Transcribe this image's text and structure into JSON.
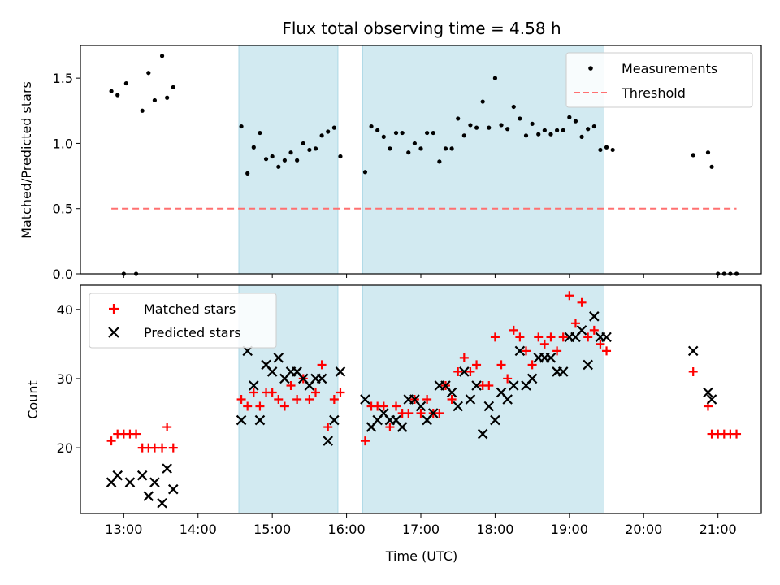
{
  "chart_data": [
    {
      "type": "scatter",
      "title": "Flux total observing time = 4.58 h",
      "xlabel": "",
      "ylabel": "Matched/Predicted stars",
      "ylim": [
        0,
        1.75
      ],
      "y_ticks": [
        "0.0",
        "0.5",
        "1.0",
        "1.5"
      ],
      "y_tick_values": [
        0,
        0.5,
        1.0,
        1.5
      ],
      "legend": {
        "position": "top-right",
        "entries": [
          "Measurements",
          "Threshold"
        ]
      },
      "shaded_intervals": [
        [
          "14:33",
          "15:53"
        ],
        [
          "16:13",
          "19:28"
        ]
      ],
      "colors": {
        "measurements": "#000000",
        "threshold": "#ff7070",
        "shade": "#add8e6"
      },
      "series": [
        {
          "name": "Measurements",
          "points": [
            [
              "12:50",
              1.4
            ],
            [
              "12:55",
              1.37
            ],
            [
              "13:00",
              0.0
            ],
            [
              "13:02",
              1.46
            ],
            [
              "13:10",
              0.0
            ],
            [
              "13:15",
              1.25
            ],
            [
              "13:20",
              1.54
            ],
            [
              "13:25",
              1.33
            ],
            [
              "13:31",
              1.67
            ],
            [
              "13:35",
              1.35
            ],
            [
              "13:40",
              1.43
            ],
            [
              "14:35",
              1.13
            ],
            [
              "14:40",
              0.77
            ],
            [
              "14:45",
              0.97
            ],
            [
              "14:50",
              1.08
            ],
            [
              "14:55",
              0.88
            ],
            [
              "15:00",
              0.9
            ],
            [
              "15:05",
              0.82
            ],
            [
              "15:10",
              0.87
            ],
            [
              "15:15",
              0.93
            ],
            [
              "15:20",
              0.87
            ],
            [
              "15:25",
              1.0
            ],
            [
              "15:30",
              0.95
            ],
            [
              "15:35",
              0.96
            ],
            [
              "15:40",
              1.06
            ],
            [
              "15:45",
              1.09
            ],
            [
              "15:50",
              1.12
            ],
            [
              "15:55",
              0.9
            ],
            [
              "16:15",
              0.78
            ],
            [
              "16:20",
              1.13
            ],
            [
              "16:25",
              1.1
            ],
            [
              "16:30",
              1.05
            ],
            [
              "16:35",
              0.96
            ],
            [
              "16:40",
              1.08
            ],
            [
              "16:45",
              1.08
            ],
            [
              "16:50",
              0.93
            ],
            [
              "16:55",
              1.0
            ],
            [
              "17:00",
              0.96
            ],
            [
              "17:05",
              1.08
            ],
            [
              "17:10",
              1.08
            ],
            [
              "17:15",
              0.86
            ],
            [
              "17:20",
              0.96
            ],
            [
              "17:25",
              0.96
            ],
            [
              "17:30",
              1.19
            ],
            [
              "17:35",
              1.06
            ],
            [
              "17:40",
              1.14
            ],
            [
              "17:45",
              1.12
            ],
            [
              "17:50",
              1.32
            ],
            [
              "17:55",
              1.12
            ],
            [
              "18:00",
              1.5
            ],
            [
              "18:05",
              1.14
            ],
            [
              "18:10",
              1.11
            ],
            [
              "18:15",
              1.28
            ],
            [
              "18:20",
              1.19
            ],
            [
              "18:25",
              1.06
            ],
            [
              "18:30",
              1.15
            ],
            [
              "18:35",
              1.07
            ],
            [
              "18:40",
              1.1
            ],
            [
              "18:45",
              1.07
            ],
            [
              "18:50",
              1.1
            ],
            [
              "18:55",
              1.1
            ],
            [
              "19:00",
              1.2
            ],
            [
              "19:05",
              1.17
            ],
            [
              "19:10",
              1.05
            ],
            [
              "19:15",
              1.11
            ],
            [
              "19:20",
              1.13
            ],
            [
              "19:25",
              0.95
            ],
            [
              "19:30",
              0.97
            ],
            [
              "19:35",
              0.95
            ],
            [
              "20:40",
              0.91
            ],
            [
              "20:52",
              0.93
            ],
            [
              "20:55",
              0.82
            ],
            [
              "21:00",
              0.0
            ],
            [
              "21:05",
              0.0
            ],
            [
              "21:10",
              0.0
            ],
            [
              "21:15",
              0.0
            ]
          ]
        },
        {
          "name": "Threshold",
          "x": [
            "12:50",
            "21:15"
          ],
          "y": [
            0.5,
            0.5
          ]
        }
      ]
    },
    {
      "type": "scatter",
      "title": "",
      "xlabel": "Time (UTC)",
      "ylabel": "Count",
      "ylim": [
        10.5,
        43.5
      ],
      "y_ticks": [
        "20",
        "30",
        "40"
      ],
      "y_tick_values": [
        20,
        30,
        40
      ],
      "x_ticks": [
        "13:00",
        "14:00",
        "15:00",
        "16:00",
        "17:00",
        "18:00",
        "19:00",
        "20:00",
        "21:00"
      ],
      "xlim": [
        "12:25",
        "21:35"
      ],
      "legend": {
        "position": "top-left",
        "entries": [
          "Matched stars",
          "Predicted stars"
        ]
      },
      "shaded_intervals": [
        [
          "14:33",
          "15:53"
        ],
        [
          "16:13",
          "19:28"
        ]
      ],
      "colors": {
        "matched": "#ff0000",
        "predicted": "#000000",
        "shade": "#add8e6"
      },
      "series": [
        {
          "name": "Matched stars",
          "points": [
            [
              "12:50",
              21
            ],
            [
              "12:55",
              22
            ],
            [
              "13:00",
              22
            ],
            [
              "13:05",
              22
            ],
            [
              "13:10",
              22
            ],
            [
              "13:15",
              20
            ],
            [
              "13:20",
              20
            ],
            [
              "13:25",
              20
            ],
            [
              "13:31",
              20
            ],
            [
              "13:35",
              23
            ],
            [
              "13:40",
              20
            ],
            [
              "14:35",
              27
            ],
            [
              "14:40",
              26
            ],
            [
              "14:45",
              28
            ],
            [
              "14:50",
              26
            ],
            [
              "14:55",
              28
            ],
            [
              "15:00",
              28
            ],
            [
              "15:05",
              27
            ],
            [
              "15:10",
              26
            ],
            [
              "15:15",
              29
            ],
            [
              "15:20",
              27
            ],
            [
              "15:25",
              30
            ],
            [
              "15:30",
              27
            ],
            [
              "15:35",
              28
            ],
            [
              "15:40",
              32
            ],
            [
              "15:45",
              23
            ],
            [
              "15:50",
              27
            ],
            [
              "15:55",
              28
            ],
            [
              "16:15",
              21
            ],
            [
              "16:20",
              26
            ],
            [
              "16:25",
              26
            ],
            [
              "16:30",
              26
            ],
            [
              "16:35",
              23
            ],
            [
              "16:40",
              26
            ],
            [
              "16:45",
              25
            ],
            [
              "16:50",
              25
            ],
            [
              "16:55",
              27
            ],
            [
              "17:00",
              25
            ],
            [
              "17:05",
              27
            ],
            [
              "17:10",
              25
            ],
            [
              "17:15",
              25
            ],
            [
              "17:20",
              29
            ],
            [
              "17:25",
              27
            ],
            [
              "17:30",
              31
            ],
            [
              "17:35",
              33
            ],
            [
              "17:40",
              31
            ],
            [
              "17:45",
              32
            ],
            [
              "17:50",
              29
            ],
            [
              "17:55",
              29
            ],
            [
              "18:00",
              36
            ],
            [
              "18:05",
              32
            ],
            [
              "18:10",
              30
            ],
            [
              "18:15",
              37
            ],
            [
              "18:20",
              36
            ],
            [
              "18:25",
              34
            ],
            [
              "18:30",
              32
            ],
            [
              "18:35",
              36
            ],
            [
              "18:40",
              35
            ],
            [
              "18:45",
              36
            ],
            [
              "18:50",
              34
            ],
            [
              "18:55",
              36
            ],
            [
              "19:00",
              42
            ],
            [
              "19:05",
              38
            ],
            [
              "19:10",
              41
            ],
            [
              "19:15",
              36
            ],
            [
              "19:20",
              37
            ],
            [
              "19:25",
              35
            ],
            [
              "19:30",
              34
            ],
            [
              "20:40",
              31
            ],
            [
              "20:52",
              26
            ],
            [
              "20:55",
              22
            ],
            [
              "21:00",
              22
            ],
            [
              "21:05",
              22
            ],
            [
              "21:10",
              22
            ],
            [
              "21:15",
              22
            ]
          ]
        },
        {
          "name": "Predicted stars",
          "points": [
            [
              "12:50",
              15
            ],
            [
              "12:55",
              16
            ],
            [
              "13:05",
              15
            ],
            [
              "13:15",
              16
            ],
            [
              "13:20",
              13
            ],
            [
              "13:25",
              15
            ],
            [
              "13:31",
              12
            ],
            [
              "13:35",
              17
            ],
            [
              "13:40",
              14
            ],
            [
              "14:35",
              24
            ],
            [
              "14:40",
              34
            ],
            [
              "14:45",
              29
            ],
            [
              "14:50",
              24
            ],
            [
              "14:55",
              32
            ],
            [
              "15:00",
              31
            ],
            [
              "15:05",
              33
            ],
            [
              "15:10",
              30
            ],
            [
              "15:15",
              31
            ],
            [
              "15:20",
              31
            ],
            [
              "15:25",
              30
            ],
            [
              "15:30",
              29
            ],
            [
              "15:35",
              30
            ],
            [
              "15:40",
              30
            ],
            [
              "15:45",
              21
            ],
            [
              "15:50",
              24
            ],
            [
              "15:55",
              31
            ],
            [
              "16:15",
              27
            ],
            [
              "16:20",
              23
            ],
            [
              "16:25",
              24
            ],
            [
              "16:30",
              25
            ],
            [
              "16:35",
              24
            ],
            [
              "16:40",
              24
            ],
            [
              "16:45",
              23
            ],
            [
              "16:50",
              27
            ],
            [
              "16:55",
              27
            ],
            [
              "17:00",
              26
            ],
            [
              "17:05",
              24
            ],
            [
              "17:10",
              25
            ],
            [
              "17:15",
              29
            ],
            [
              "17:20",
              29
            ],
            [
              "17:25",
              28
            ],
            [
              "17:30",
              26
            ],
            [
              "17:35",
              31
            ],
            [
              "17:40",
              27
            ],
            [
              "17:45",
              29
            ],
            [
              "17:50",
              22
            ],
            [
              "17:55",
              26
            ],
            [
              "18:00",
              24
            ],
            [
              "18:05",
              28
            ],
            [
              "18:10",
              27
            ],
            [
              "18:15",
              29
            ],
            [
              "18:20",
              34
            ],
            [
              "18:25",
              29
            ],
            [
              "18:30",
              30
            ],
            [
              "18:35",
              33
            ],
            [
              "18:40",
              33
            ],
            [
              "18:45",
              33
            ],
            [
              "18:50",
              31
            ],
            [
              "18:55",
              31
            ],
            [
              "19:00",
              36
            ],
            [
              "19:05",
              36
            ],
            [
              "19:10",
              37
            ],
            [
              "19:15",
              32
            ],
            [
              "19:20",
              39
            ],
            [
              "19:25",
              36
            ],
            [
              "19:30",
              36
            ],
            [
              "20:40",
              34
            ],
            [
              "20:52",
              28
            ],
            [
              "20:55",
              27
            ]
          ]
        }
      ]
    }
  ]
}
